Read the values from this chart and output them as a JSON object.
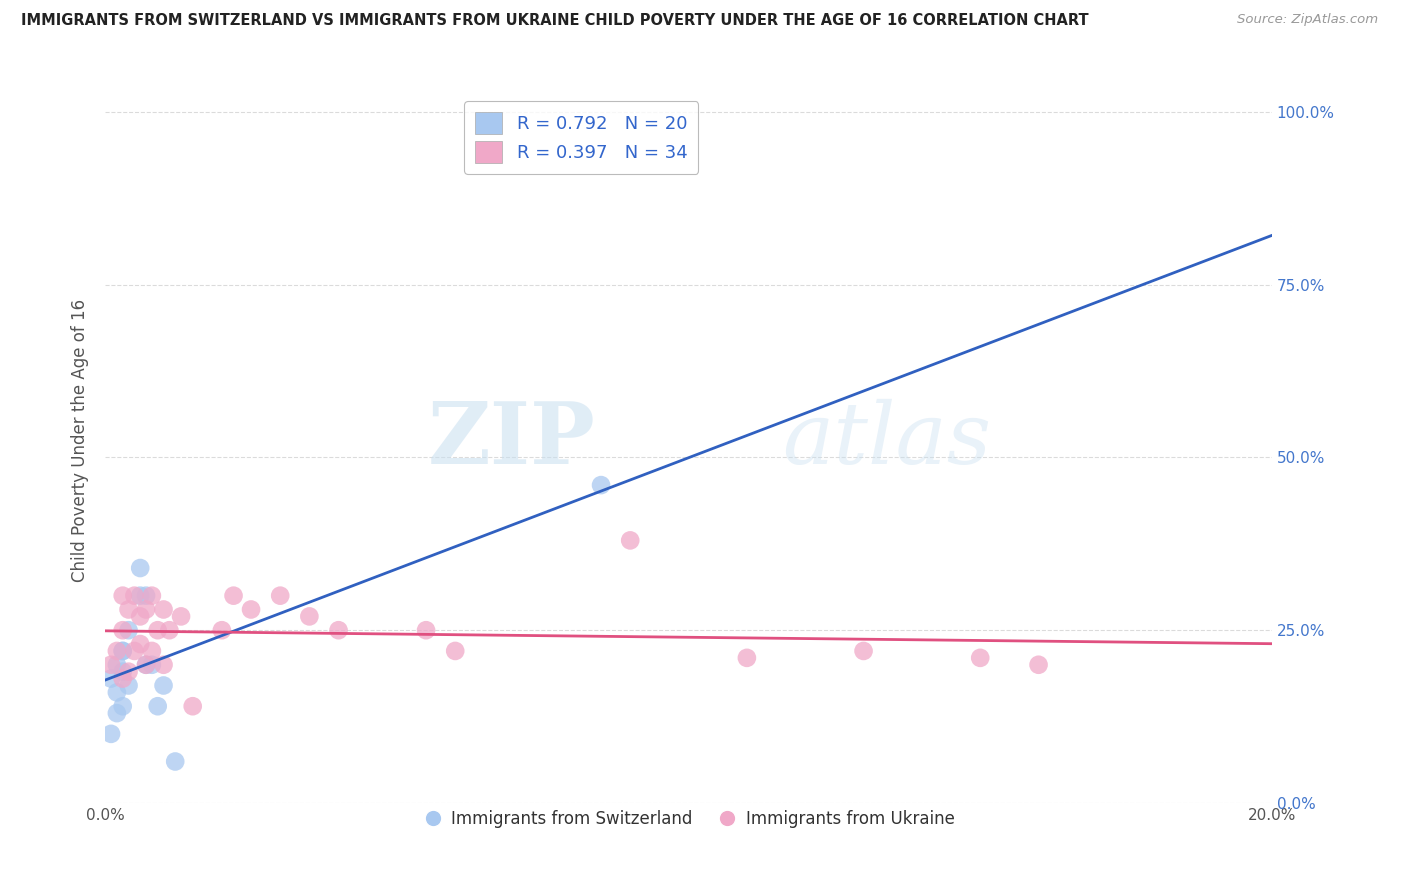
{
  "title": "IMMIGRANTS FROM SWITZERLAND VS IMMIGRANTS FROM UKRAINE CHILD POVERTY UNDER THE AGE OF 16 CORRELATION CHART",
  "source": "Source: ZipAtlas.com",
  "ylabel": "Child Poverty Under the Age of 16",
  "r_swiss": 0.792,
  "n_swiss": 20,
  "r_ukraine": 0.397,
  "n_ukraine": 34,
  "swiss_color": "#a8c8f0",
  "ukraine_color": "#f0a8c8",
  "swiss_line_color": "#3060c0",
  "ukraine_line_color": "#e05080",
  "background_color": "#ffffff",
  "grid_color": "#cccccc",
  "xlim": [
    0.0,
    0.2
  ],
  "ylim": [
    0.0,
    1.05
  ],
  "yticks": [
    0.0,
    0.25,
    0.5,
    0.75,
    1.0
  ],
  "ytick_labels_left": [
    "",
    "25.0%",
    "50.0%",
    "75.0%",
    "100.0%"
  ],
  "ytick_labels_right": [
    "0.0%",
    "25.0%",
    "50.0%",
    "75.0%",
    "100.0%"
  ],
  "xticks": [
    0.0,
    0.05,
    0.1,
    0.15,
    0.2
  ],
  "xtick_labels": [
    "0.0%",
    "",
    "",
    "",
    "20.0%"
  ],
  "swiss_x": [
    0.001,
    0.002,
    0.002,
    0.003,
    0.003,
    0.003,
    0.004,
    0.004,
    0.006,
    0.006,
    0.007,
    0.008,
    0.009,
    0.01,
    0.012,
    0.085,
    0.001,
    0.002,
    0.003,
    0.007
  ],
  "swiss_y": [
    0.18,
    0.2,
    0.13,
    0.22,
    0.19,
    0.14,
    0.25,
    0.17,
    0.34,
    0.3,
    0.3,
    0.2,
    0.14,
    0.17,
    0.06,
    0.46,
    0.1,
    0.16,
    0.22,
    0.2
  ],
  "ukraine_x": [
    0.001,
    0.002,
    0.003,
    0.003,
    0.004,
    0.005,
    0.005,
    0.006,
    0.006,
    0.007,
    0.007,
    0.008,
    0.008,
    0.009,
    0.01,
    0.01,
    0.011,
    0.013,
    0.015,
    0.02,
    0.022,
    0.025,
    0.03,
    0.035,
    0.04,
    0.055,
    0.06,
    0.09,
    0.11,
    0.13,
    0.15,
    0.16,
    0.003,
    0.004
  ],
  "ukraine_y": [
    0.2,
    0.22,
    0.18,
    0.25,
    0.19,
    0.3,
    0.22,
    0.27,
    0.23,
    0.2,
    0.28,
    0.22,
    0.3,
    0.25,
    0.28,
    0.2,
    0.25,
    0.27,
    0.14,
    0.25,
    0.3,
    0.28,
    0.3,
    0.27,
    0.25,
    0.25,
    0.22,
    0.38,
    0.21,
    0.22,
    0.21,
    0.2,
    0.3,
    0.28
  ],
  "watermark_zip": "ZIP",
  "watermark_atlas": "atlas"
}
